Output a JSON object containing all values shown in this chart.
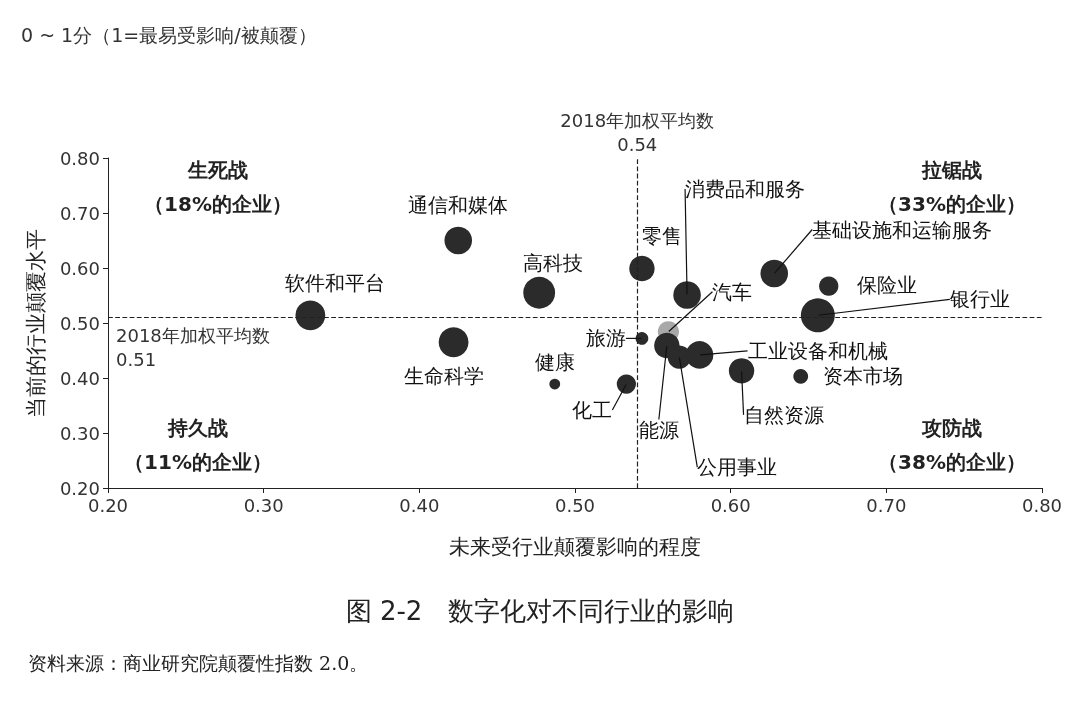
{
  "chart_data": {
    "type": "bubble",
    "title": "图 2-2　数字化对不同行业的影响",
    "subtitle": "0 ~ 1分（1=最易受影响/被颠覆）",
    "xlabel": "未来受行业颠覆影响的程度",
    "ylabel": "当前的行业颠覆水平",
    "x": [
      0.425,
      0.33,
      0.477,
      0.422,
      0.487,
      0.543,
      0.533,
      0.543,
      0.56,
      0.559,
      0.567,
      0.58,
      0.572,
      0.607,
      0.645,
      0.628,
      0.663,
      0.656
    ],
    "values": [
      0.65,
      0.514,
      0.555,
      0.465,
      0.389,
      0.599,
      0.389,
      0.472,
      0.484,
      0.459,
      0.438,
      0.442,
      0.551,
      0.413,
      0.403,
      0.59,
      0.567,
      0.514
    ],
    "sizes": [
      0.66,
      0.77,
      0.88,
      0.77,
      0.1,
      0.56,
      0.32,
      0.14,
      0.39,
      0.56,
      0.47,
      0.66,
      0.66,
      0.56,
      0.19,
      0.66,
      0.32,
      1
    ],
    "colors": [
      "#2b2b2b",
      "#2b2b2b",
      "#2b2b2b",
      "#2b2b2b",
      "#2b2b2b",
      "#2b2b2b",
      "#2b2b2b",
      "#2b2b2b",
      "#a8a8a8",
      "#2b2b2b",
      "#2b2b2b",
      "#2b2b2b",
      "#2b2b2b",
      "#2b2b2b",
      "#2b2b2b",
      "#2b2b2b",
      "#2b2b2b",
      "#2b2b2b"
    ],
    "marker": "circle",
    "xlim": [
      0.2,
      0.8
    ],
    "ylim": [
      0.2,
      0.8
    ],
    "xticks": [
      {
        "value": 0.2,
        "label": "0.20"
      },
      {
        "value": 0.3,
        "label": "0.30"
      },
      {
        "value": 0.4,
        "label": "0.40"
      },
      {
        "value": 0.5,
        "label": "0.50"
      },
      {
        "value": 0.6,
        "label": "0.60"
      },
      {
        "value": 0.7,
        "label": "0.70"
      },
      {
        "value": 0.8,
        "label": "0.80"
      }
    ],
    "yticks": [
      {
        "value": 0.2,
        "label": "0.20"
      },
      {
        "value": 0.3,
        "label": "0.30"
      },
      {
        "value": 0.4,
        "label": "0.40"
      },
      {
        "value": 0.5,
        "label": "0.50"
      },
      {
        "value": 0.6,
        "label": "0.60"
      },
      {
        "value": 0.7,
        "label": "0.70"
      },
      {
        "value": 0.8,
        "label": "0.80"
      }
    ],
    "ref_lines": [
      {
        "axis": "x",
        "value": 0.54,
        "label": "2018年加权平均数\n0.54",
        "line_style": "dashed",
        "color": "#222222"
      },
      {
        "axis": "y",
        "value": 0.51,
        "label": "2018年加权平均数\n0.51",
        "line_style": "dashed",
        "color": "#222222"
      }
    ],
    "annotations": [
      "生死战",
      "（18%的企业）",
      "拉锯战",
      "（33%的企业）",
      "持久战",
      "（11%的企业）",
      "攻防战",
      "（38%的企业）",
      "资料来源：商业研究院颠覆性指数 2.0。",
      {
        "text": "通信和媒体",
        "x": 0.425,
        "y": 0.65
      },
      {
        "text": "软件和平台",
        "x": 0.33,
        "y": 0.514
      },
      {
        "text": "高科技",
        "x": 0.477,
        "y": 0.555
      },
      {
        "text": "生命科学",
        "x": 0.422,
        "y": 0.465
      },
      {
        "text": "健康",
        "x": 0.487,
        "y": 0.389
      },
      {
        "text": "零售",
        "x": 0.543,
        "y": 0.599
      },
      {
        "text": "化工",
        "x": 0.533,
        "y": 0.389
      },
      {
        "text": "旅游",
        "x": 0.543,
        "y": 0.472
      },
      {
        "text": "汽车",
        "x": 0.56,
        "y": 0.484
      },
      {
        "text": "能源",
        "x": 0.559,
        "y": 0.459
      },
      {
        "text": "公用事业",
        "x": 0.567,
        "y": 0.438
      },
      {
        "text": "工业设备和机械",
        "x": 0.58,
        "y": 0.442
      },
      {
        "text": "消费品和服务",
        "x": 0.572,
        "y": 0.551
      },
      {
        "text": "自然资源",
        "x": 0.607,
        "y": 0.413
      },
      {
        "text": "资本市场",
        "x": 0.645,
        "y": 0.403
      },
      {
        "text": "基础设施和运输服务",
        "x": 0.628,
        "y": 0.59
      },
      {
        "text": "保险业",
        "x": 0.663,
        "y": 0.567
      },
      {
        "text": "银行业",
        "x": 0.656,
        "y": 0.514
      }
    ]
  }
}
